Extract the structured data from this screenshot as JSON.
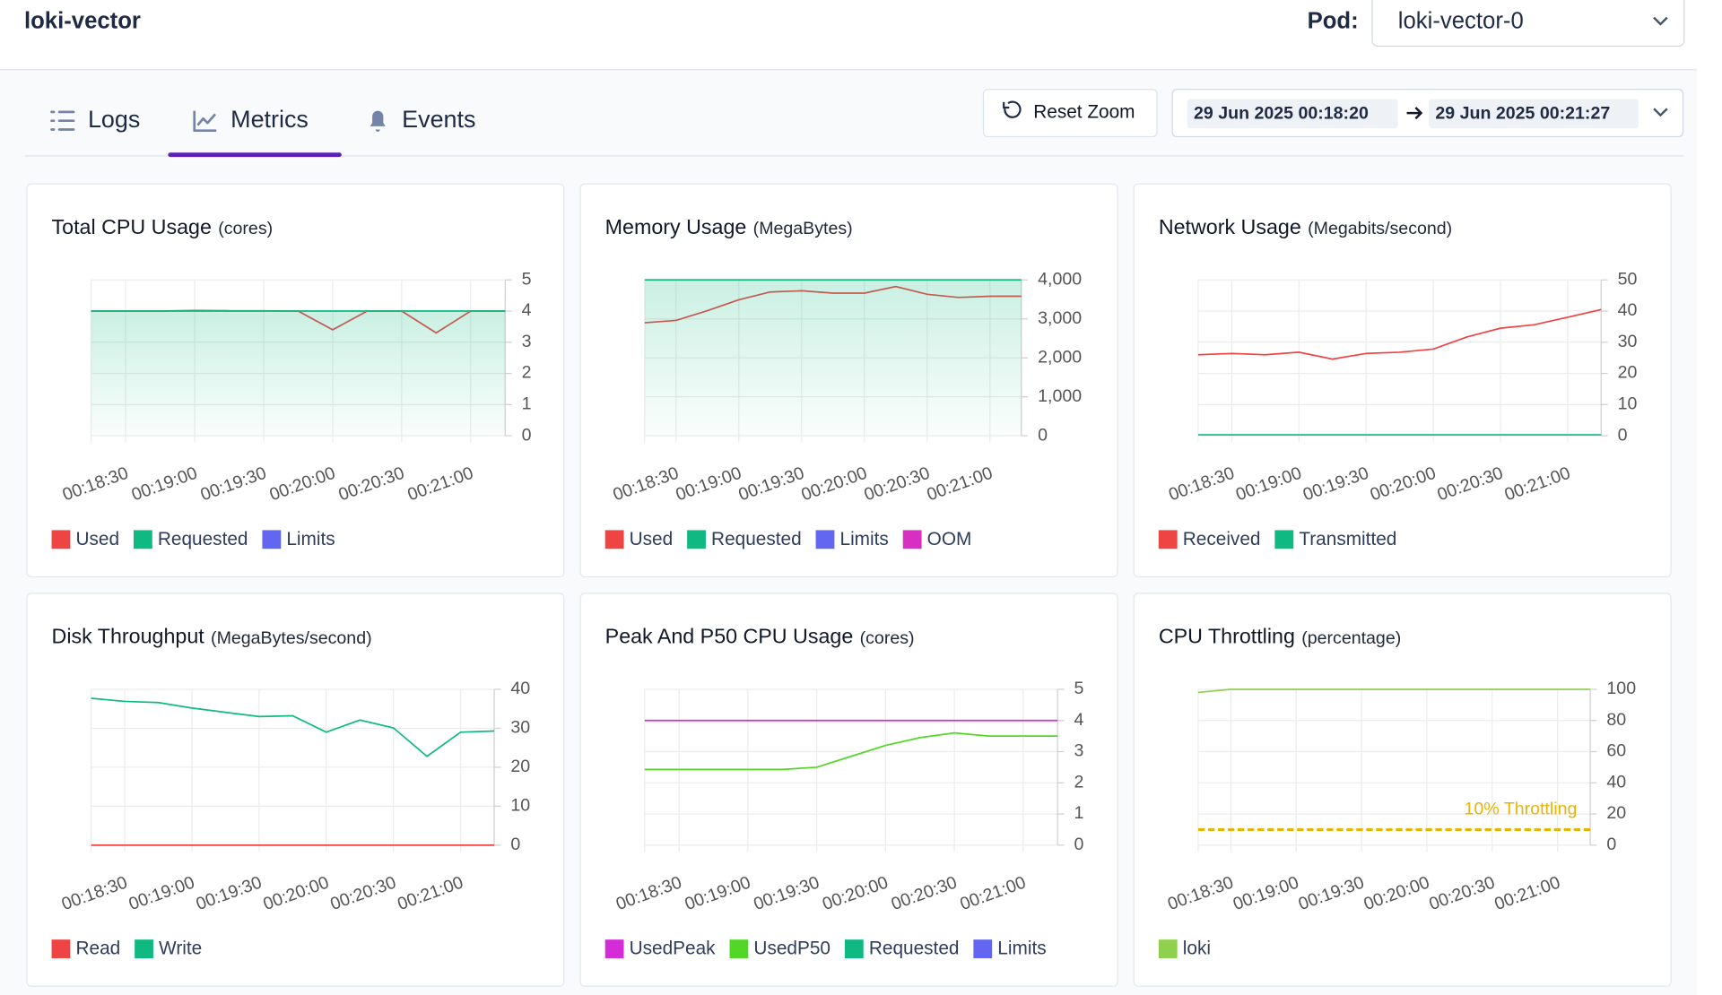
{
  "header": {
    "title": "loki-vector",
    "pod_label": "Pod:",
    "pod": "loki-vector-0"
  },
  "tabs": [
    "Logs",
    "Metrics",
    "Events"
  ],
  "toolbar": {
    "reset": "Reset Zoom",
    "from": "29 Jun 2025 00:18:20",
    "to": "29 Jun 2025 00:21:27"
  },
  "charts": [
    {
      "type": "line",
      "title": "Total CPU Usage",
      "unit": "(cores)",
      "categories": [
        null,
        "00:18:30",
        null,
        "00:19:00",
        null,
        "00:19:30",
        null,
        "00:20:00",
        null,
        "00:20:30",
        null,
        "00:21:00",
        null
      ],
      "series": [
        {
          "name": "Used",
          "color": "#ef4444",
          "values": [
            4,
            4,
            4,
            4.02,
            4.01,
            4.01,
            4,
            3.4,
            4,
            4,
            3.3,
            4,
            4
          ]
        },
        {
          "name": "Requested",
          "color": "#10b981",
          "fill": true,
          "values": [
            4,
            4,
            4,
            4,
            4,
            4,
            4,
            4,
            4,
            4,
            4,
            4,
            4
          ]
        },
        {
          "name": "Limits",
          "color": "#6366f1",
          "values": [
            null,
            null,
            null,
            null,
            null,
            null,
            null,
            null,
            null,
            null,
            null,
            null,
            null
          ]
        }
      ],
      "ylim": [
        0,
        5
      ],
      "yticks": [
        0,
        1,
        2,
        3,
        4,
        5
      ],
      "grid": true
    },
    {
      "type": "line",
      "title": "Memory Usage",
      "unit": "(MegaBytes)",
      "categories": [
        null,
        "00:18:30",
        null,
        "00:19:00",
        null,
        "00:19:30",
        null,
        "00:20:00",
        null,
        "00:20:30",
        null,
        "00:21:00",
        null
      ],
      "series": [
        {
          "name": "Used",
          "color": "#ef4444",
          "values": [
            2900,
            2960,
            3210,
            3490,
            3690,
            3720,
            3660,
            3660,
            3830,
            3630,
            3550,
            3580,
            3580
          ]
        },
        {
          "name": "Requested",
          "color": "#10b981",
          "fill": true,
          "values": [
            4000,
            4000,
            4000,
            4000,
            4000,
            4000,
            4000,
            4000,
            4000,
            4000,
            4000,
            4000,
            4000
          ]
        },
        {
          "name": "Limits",
          "color": "#6366f1",
          "values": [
            null,
            null,
            null,
            null,
            null,
            null,
            null,
            null,
            null,
            null,
            null,
            null,
            null
          ]
        },
        {
          "name": "OOM",
          "color": "#d62fc1",
          "values": [
            null,
            null,
            null,
            null,
            null,
            null,
            null,
            null,
            null,
            null,
            null,
            null,
            null
          ]
        }
      ],
      "ylim": [
        0,
        4000
      ],
      "yticks": [
        0,
        {
          "value": 1000,
          "label": "1,000"
        },
        {
          "value": 2000,
          "label": "2,000"
        },
        {
          "value": 3000,
          "label": "3,000"
        },
        {
          "value": 4000,
          "label": "4,000"
        }
      ],
      "grid": true
    },
    {
      "type": "line",
      "title": "Network Usage",
      "unit": "(Megabits/second)",
      "categories": [
        null,
        "00:18:30",
        null,
        "00:19:00",
        null,
        "00:19:30",
        null,
        "00:20:00",
        null,
        "00:20:30",
        null,
        "00:21:00",
        null
      ],
      "series": [
        {
          "name": "Received",
          "color": "#ef4444",
          "values": [
            26,
            26.4,
            26,
            26.8,
            24.6,
            26.4,
            26.8,
            27.8,
            31.7,
            34.5,
            35.6,
            38,
            40.5
          ]
        },
        {
          "name": "Transmitted",
          "color": "#10b981",
          "values": [
            0.3,
            0.3,
            0.3,
            0.3,
            0.3,
            0.3,
            0.3,
            0.3,
            0.3,
            0.3,
            0.3,
            0.3,
            0.3
          ]
        }
      ],
      "ylim": [
        0,
        50
      ],
      "yticks": [
        0,
        10,
        20,
        30,
        40,
        50
      ],
      "grid": true
    },
    {
      "type": "line",
      "title": "Disk Throughput",
      "unit": "(MegaBytes/second)",
      "categories": [
        null,
        "00:18:30",
        null,
        "00:19:00",
        null,
        "00:19:30",
        null,
        "00:20:00",
        null,
        "00:20:30",
        null,
        "00:21:00",
        null
      ],
      "series": [
        {
          "name": "Read",
          "color": "#ef4444",
          "values": [
            0,
            0,
            0,
            0,
            0,
            0,
            0,
            0,
            0,
            0,
            0,
            0,
            0
          ]
        },
        {
          "name": "Write",
          "color": "#10b981",
          "values": [
            37.7,
            36.9,
            36.6,
            35.2,
            34.1,
            33,
            33.2,
            29,
            32.1,
            30.1,
            22.8,
            29,
            29.3
          ]
        }
      ],
      "ylim": [
        0,
        40
      ],
      "yticks": [
        0,
        10,
        20,
        30,
        40
      ],
      "grid": true
    },
    {
      "type": "line",
      "title": "Peak And P50 CPU Usage",
      "unit": "(cores)",
      "categories": [
        null,
        "00:18:30",
        null,
        "00:19:00",
        null,
        "00:19:30",
        null,
        "00:20:00",
        null,
        "00:20:30",
        null,
        "00:21:00",
        null
      ],
      "series": [
        {
          "name": "UsedPeak",
          "color": "#d42dd8",
          "values": [
            4,
            4,
            4,
            4,
            4,
            4,
            4,
            4,
            4,
            4,
            4,
            4,
            4
          ]
        },
        {
          "name": "UsedP50",
          "color": "#52d726",
          "values": [
            2.43,
            2.43,
            2.43,
            2.43,
            2.43,
            2.5,
            2.85,
            3.2,
            3.45,
            3.6,
            3.5,
            3.5,
            3.5
          ]
        },
        {
          "name": "Requested",
          "color": "#10b981",
          "values": [
            null,
            null,
            null,
            null,
            null,
            null,
            null,
            null,
            null,
            null,
            null,
            null,
            null
          ]
        },
        {
          "name": "Limits",
          "color": "#6366f1",
          "values": [
            null,
            null,
            null,
            null,
            null,
            null,
            null,
            null,
            null,
            null,
            null,
            null,
            null
          ]
        }
      ],
      "ylim": [
        0,
        5
      ],
      "yticks": [
        0,
        1,
        2,
        3,
        4,
        5
      ],
      "grid": true
    },
    {
      "type": "line",
      "title": "CPU Throttling",
      "unit": "(percentage)",
      "categories": [
        null,
        "00:18:30",
        null,
        "00:19:00",
        null,
        "00:19:30",
        null,
        "00:20:00",
        null,
        "00:20:30",
        null,
        "00:21:00",
        null
      ],
      "series": [
        {
          "name": "loki",
          "color": "#8fd14f",
          "values": [
            98,
            100,
            100,
            100,
            100,
            100,
            100,
            100,
            100,
            100,
            100,
            100,
            100
          ]
        }
      ],
      "threshold": {
        "value": 10,
        "label": "10% Throttling",
        "color": "#eab308"
      },
      "ylim": [
        0,
        100
      ],
      "yticks": [
        0,
        20,
        40,
        60,
        80,
        100
      ],
      "grid": true
    }
  ]
}
